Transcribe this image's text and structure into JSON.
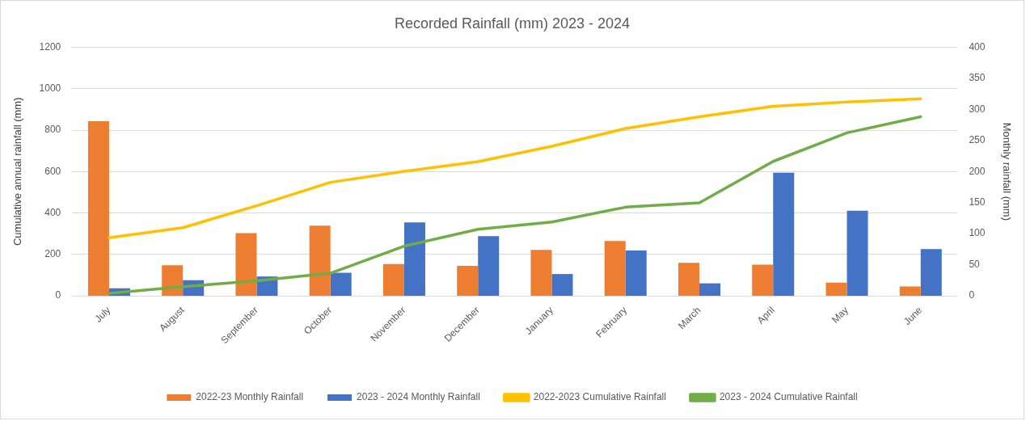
{
  "chart_data": {
    "type": "bar",
    "title": "Recorded Rainfall (mm) 2023 - 2024",
    "ylabel": "Cumulative annual rainfall (mm)",
    "y2label": "Monthly rainfall (mm)",
    "categories": [
      "July",
      "August",
      "September",
      "October",
      "November",
      "December",
      "January",
      "February",
      "March",
      "April",
      "May",
      "June"
    ],
    "series": [
      {
        "name": "2022-23 Monthly Rainfall",
        "axis": "y2",
        "color": "#ed7d31",
        "values": [
          281,
          49,
          101,
          113,
          51,
          48,
          74,
          88,
          53,
          50,
          21,
          15
        ]
      },
      {
        "name": "2023 - 2024 Monthly Rainfall",
        "axis": "y2",
        "color": "#4472c4",
        "values": [
          12,
          25,
          31,
          37,
          118,
          96,
          35,
          73,
          20,
          198,
          137,
          75
        ]
      },
      {
        "name": "2022-2023 Cumulative Rainfall",
        "type": "line",
        "color": "#ffc000",
        "values": [
          280,
          329,
          435,
          548,
          601,
          648,
          722,
          808,
          865,
          915,
          936,
          952
        ]
      },
      {
        "name": "2023 - 2024 Cumulative Rainfall",
        "type": "line",
        "color": "#70ad47",
        "values": [
          12,
          44,
          72,
          109,
          240,
          321,
          356,
          428,
          449,
          649,
          787,
          865
        ]
      }
    ],
    "ylim": [
      0,
      1200
    ],
    "yticks": [
      0,
      200,
      400,
      600,
      800,
      1000,
      1200
    ],
    "y2lim": [
      0,
      400
    ],
    "y2ticks": [
      0,
      50,
      100,
      150,
      200,
      250,
      300,
      350,
      400
    ],
    "grid": "y",
    "legend": "bottom",
    "marker": "none",
    "line_style": "solid"
  }
}
